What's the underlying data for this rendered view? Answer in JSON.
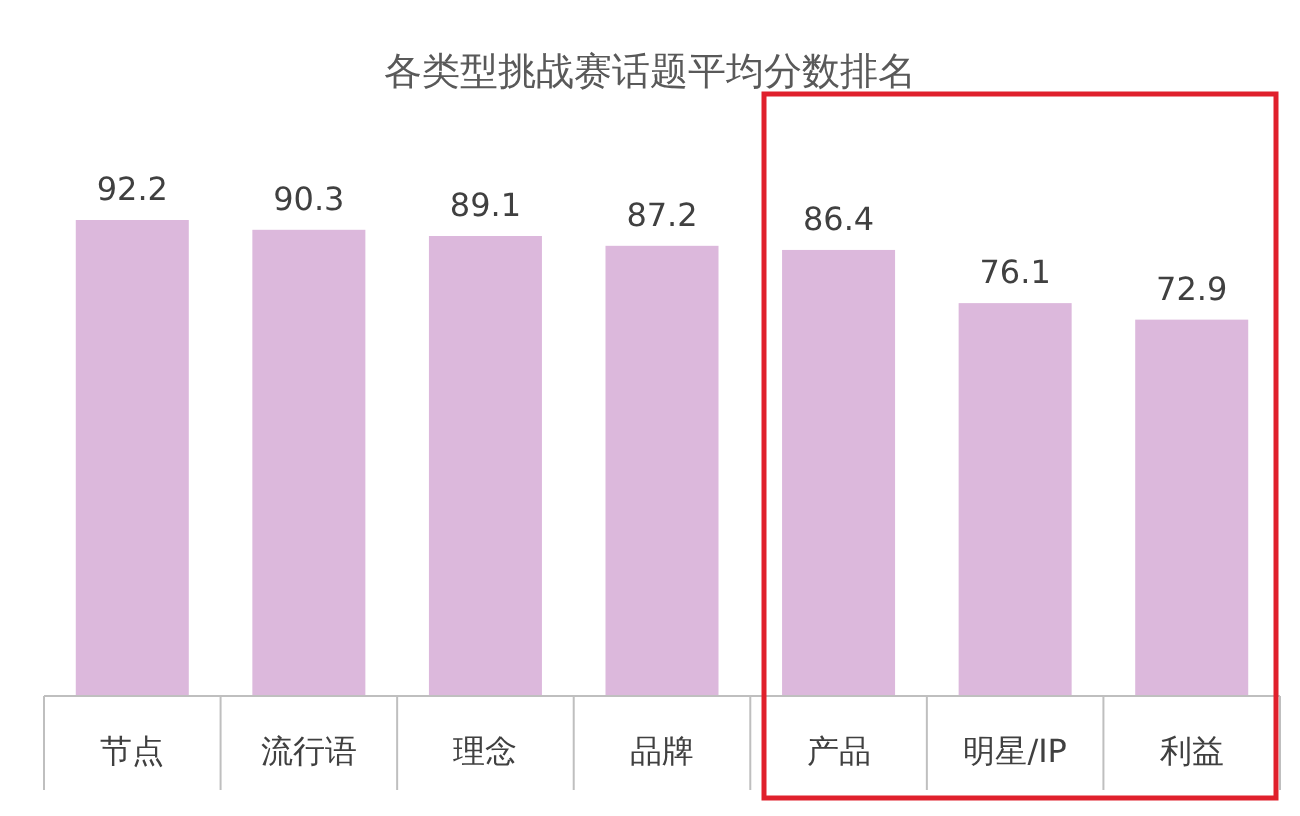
{
  "chart_data": {
    "type": "bar",
    "title": "各类型挑战赛话题平均分数排名",
    "categories": [
      "节点",
      "流行语",
      "理念",
      "品牌",
      "产品",
      "明星/IP",
      "利益"
    ],
    "values": [
      92.2,
      90.3,
      89.1,
      87.2,
      86.4,
      76.1,
      72.9
    ],
    "color": "#dcb8dc",
    "data_labels": true
  }
}
